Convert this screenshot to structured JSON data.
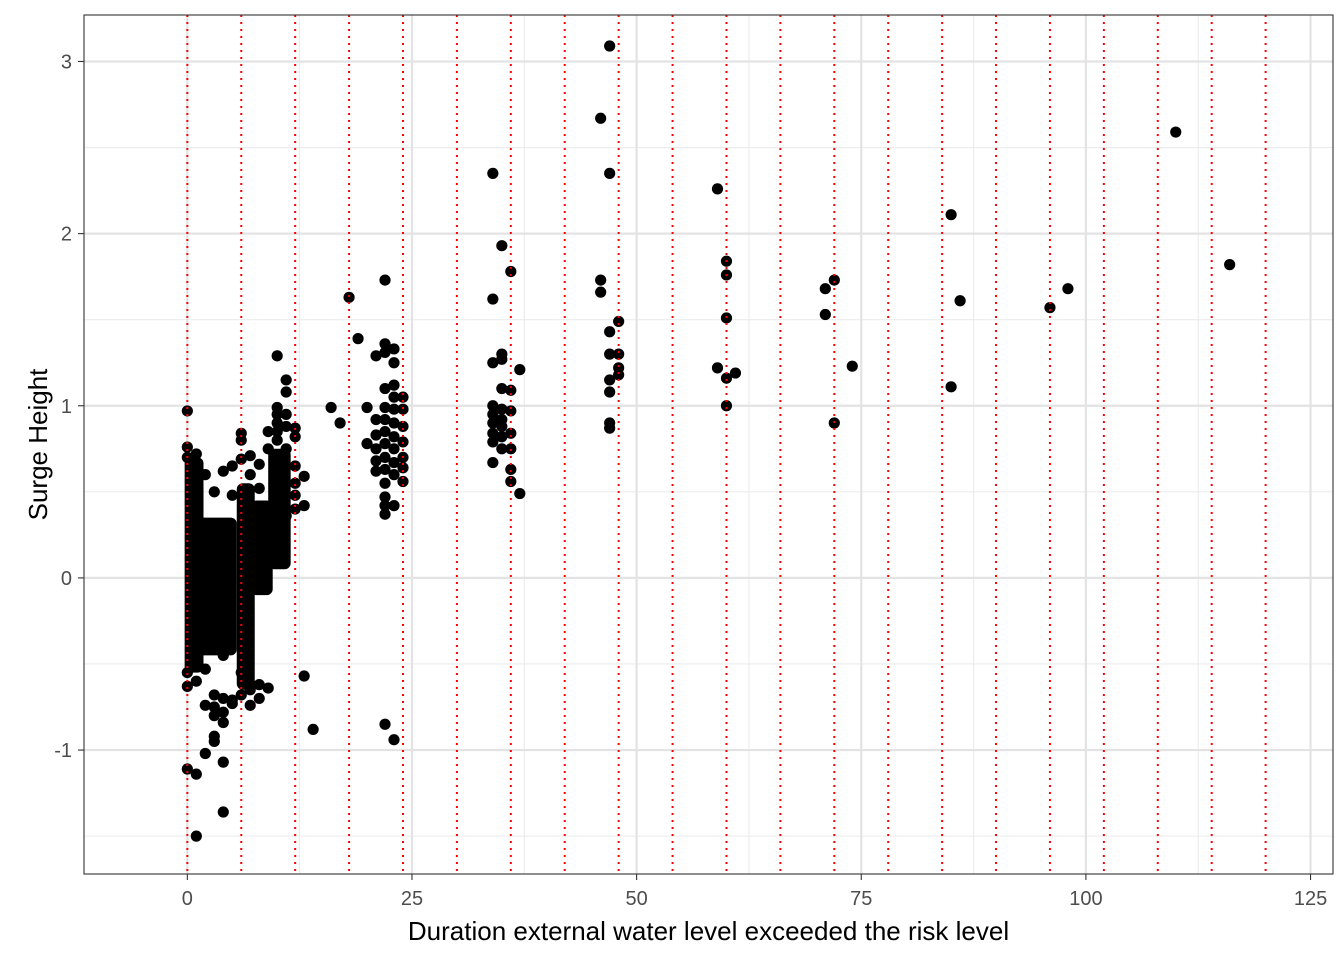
{
  "chart_data": {
    "type": "scatter",
    "title": "",
    "xlabel": "Duration external water level exceeded the risk level",
    "ylabel": "Surge Height",
    "xlim": [
      -11.5,
      127.5
    ],
    "ylim": [
      -1.72,
      3.27
    ],
    "x_ticks": [
      0,
      25,
      50,
      75,
      100,
      125
    ],
    "x_tick_labels": [
      "0",
      "25",
      "50",
      "75",
      "100",
      "125"
    ],
    "y_ticks": [
      -1,
      0,
      1,
      2,
      3
    ],
    "y_tick_labels": [
      "-1",
      "0",
      "1",
      "2",
      "3"
    ],
    "grid": true,
    "reference_lines": {
      "orientation": "vertical",
      "style": "dotted",
      "color": "#ff0000",
      "x": [
        0,
        6,
        12,
        18,
        24,
        30,
        36,
        42,
        48,
        54,
        60,
        66,
        72,
        78,
        84,
        90,
        96,
        102,
        108,
        114,
        120
      ]
    },
    "dense_clusters": [
      {
        "x_min": -0.3,
        "x_max": 1.8,
        "y_min": -0.55,
        "y_max": 0.7
      },
      {
        "x_min": 1.0,
        "x_max": 5.5,
        "y_min": -0.45,
        "y_max": 0.35
      },
      {
        "x_min": 5.5,
        "x_max": 7.5,
        "y_min": -0.65,
        "y_max": 0.55
      },
      {
        "x_min": 7.0,
        "x_max": 9.5,
        "y_min": -0.1,
        "y_max": 0.45
      },
      {
        "x_min": 9.0,
        "x_max": 11.5,
        "y_min": 0.05,
        "y_max": 0.75
      }
    ],
    "points": [
      [
        0,
        0.97
      ],
      [
        0,
        0.76
      ],
      [
        0,
        0.7
      ],
      [
        0,
        -0.55
      ],
      [
        0,
        -0.63
      ],
      [
        0,
        -1.11
      ],
      [
        1,
        -1.14
      ],
      [
        1,
        -1.5
      ],
      [
        1,
        -0.6
      ],
      [
        1,
        0.72
      ],
      [
        1,
        -0.48
      ],
      [
        2,
        -0.74
      ],
      [
        2,
        -1.02
      ],
      [
        2,
        -0.53
      ],
      [
        2,
        0.6
      ],
      [
        3,
        -0.75
      ],
      [
        3,
        -0.92
      ],
      [
        3,
        -0.95
      ],
      [
        3,
        -0.8
      ],
      [
        3,
        -0.68
      ],
      [
        3,
        0.5
      ],
      [
        4,
        -1.36
      ],
      [
        4,
        -1.07
      ],
      [
        4,
        -0.84
      ],
      [
        4,
        -0.78
      ],
      [
        4,
        -0.7
      ],
      [
        4,
        -0.45
      ],
      [
        4,
        0.62
      ],
      [
        5,
        -0.71
      ],
      [
        5,
        -0.73
      ],
      [
        5,
        0.65
      ],
      [
        5,
        0.48
      ],
      [
        6,
        0.84
      ],
      [
        6,
        0.8
      ],
      [
        6,
        0.69
      ],
      [
        6,
        -0.55
      ],
      [
        6,
        -0.68
      ],
      [
        7,
        -0.74
      ],
      [
        7,
        -0.65
      ],
      [
        7,
        0.71
      ],
      [
        7,
        0.6
      ],
      [
        8,
        -0.7
      ],
      [
        8,
        -0.62
      ],
      [
        8,
        0.52
      ],
      [
        8,
        0.66
      ],
      [
        9,
        -0.64
      ],
      [
        9,
        0.85
      ],
      [
        9,
        0.75
      ],
      [
        10,
        1.29
      ],
      [
        10,
        0.99
      ],
      [
        10,
        0.95
      ],
      [
        10,
        0.9
      ],
      [
        10,
        0.85
      ],
      [
        10,
        0.8
      ],
      [
        11,
        1.15
      ],
      [
        11,
        1.08
      ],
      [
        11,
        0.95
      ],
      [
        11,
        0.88
      ],
      [
        11,
        0.75
      ],
      [
        11,
        0.55
      ],
      [
        11,
        0.36
      ],
      [
        12,
        0.87
      ],
      [
        12,
        0.82
      ],
      [
        12,
        0.65
      ],
      [
        12,
        0.55
      ],
      [
        12,
        0.48
      ],
      [
        12,
        0.4
      ],
      [
        13,
        0.59
      ],
      [
        13,
        0.42
      ],
      [
        13,
        -0.57
      ],
      [
        14,
        -0.88
      ],
      [
        16,
        0.99
      ],
      [
        17,
        0.9
      ],
      [
        18,
        1.63
      ],
      [
        19,
        1.39
      ],
      [
        20,
        0.99
      ],
      [
        20,
        0.78
      ],
      [
        21,
        1.29
      ],
      [
        21,
        0.92
      ],
      [
        21,
        0.83
      ],
      [
        21,
        0.75
      ],
      [
        21,
        0.68
      ],
      [
        21,
        0.62
      ],
      [
        22,
        1.73
      ],
      [
        22,
        1.36
      ],
      [
        22,
        1.31
      ],
      [
        22,
        1.1
      ],
      [
        22,
        0.99
      ],
      [
        22,
        0.92
      ],
      [
        22,
        0.85
      ],
      [
        22,
        0.78
      ],
      [
        22,
        0.7
      ],
      [
        22,
        0.63
      ],
      [
        22,
        0.55
      ],
      [
        22,
        0.47
      ],
      [
        22,
        0.42
      ],
      [
        22,
        0.37
      ],
      [
        22,
        -0.85
      ],
      [
        23,
        1.33
      ],
      [
        23,
        1.25
      ],
      [
        23,
        1.12
      ],
      [
        23,
        1.05
      ],
      [
        23,
        0.98
      ],
      [
        23,
        0.9
      ],
      [
        23,
        0.82
      ],
      [
        23,
        0.75
      ],
      [
        23,
        0.67
      ],
      [
        23,
        0.6
      ],
      [
        23,
        0.42
      ],
      [
        23,
        -0.94
      ],
      [
        24,
        1.05
      ],
      [
        24,
        0.98
      ],
      [
        24,
        0.88
      ],
      [
        24,
        0.79
      ],
      [
        24,
        0.7
      ],
      [
        24,
        0.64
      ],
      [
        24,
        0.56
      ],
      [
        34,
        2.35
      ],
      [
        34,
        1.62
      ],
      [
        34,
        1.25
      ],
      [
        34,
        1.0
      ],
      [
        34,
        0.95
      ],
      [
        34,
        0.9
      ],
      [
        34,
        0.84
      ],
      [
        34,
        0.79
      ],
      [
        34,
        0.67
      ],
      [
        35,
        1.93
      ],
      [
        35,
        1.3
      ],
      [
        35,
        1.27
      ],
      [
        35,
        1.1
      ],
      [
        35,
        0.98
      ],
      [
        35,
        0.92
      ],
      [
        35,
        0.88
      ],
      [
        35,
        0.82
      ],
      [
        35,
        0.75
      ],
      [
        36,
        1.78
      ],
      [
        36,
        1.09
      ],
      [
        36,
        0.97
      ],
      [
        36,
        0.84
      ],
      [
        36,
        0.75
      ],
      [
        36,
        0.63
      ],
      [
        36,
        0.56
      ],
      [
        37,
        1.21
      ],
      [
        37,
        0.49
      ],
      [
        46,
        2.67
      ],
      [
        46,
        1.73
      ],
      [
        46,
        1.66
      ],
      [
        47,
        3.09
      ],
      [
        47,
        2.35
      ],
      [
        47,
        1.43
      ],
      [
        47,
        1.3
      ],
      [
        47,
        1.15
      ],
      [
        47,
        1.08
      ],
      [
        47,
        0.9
      ],
      [
        47,
        0.87
      ],
      [
        48,
        1.49
      ],
      [
        48,
        1.3
      ],
      [
        48,
        1.22
      ],
      [
        48,
        1.18
      ],
      [
        59,
        2.26
      ],
      [
        59,
        1.22
      ],
      [
        60,
        1.84
      ],
      [
        60,
        1.76
      ],
      [
        60,
        1.51
      ],
      [
        60,
        1.16
      ],
      [
        60,
        1.0
      ],
      [
        61,
        1.19
      ],
      [
        71,
        1.68
      ],
      [
        71,
        1.53
      ],
      [
        72,
        1.73
      ],
      [
        72,
        0.9
      ],
      [
        74,
        1.23
      ],
      [
        85,
        2.11
      ],
      [
        85,
        1.11
      ],
      [
        86,
        1.61
      ],
      [
        96,
        1.57
      ],
      [
        98,
        1.68
      ],
      [
        110,
        2.59
      ],
      [
        116,
        1.82
      ]
    ]
  }
}
